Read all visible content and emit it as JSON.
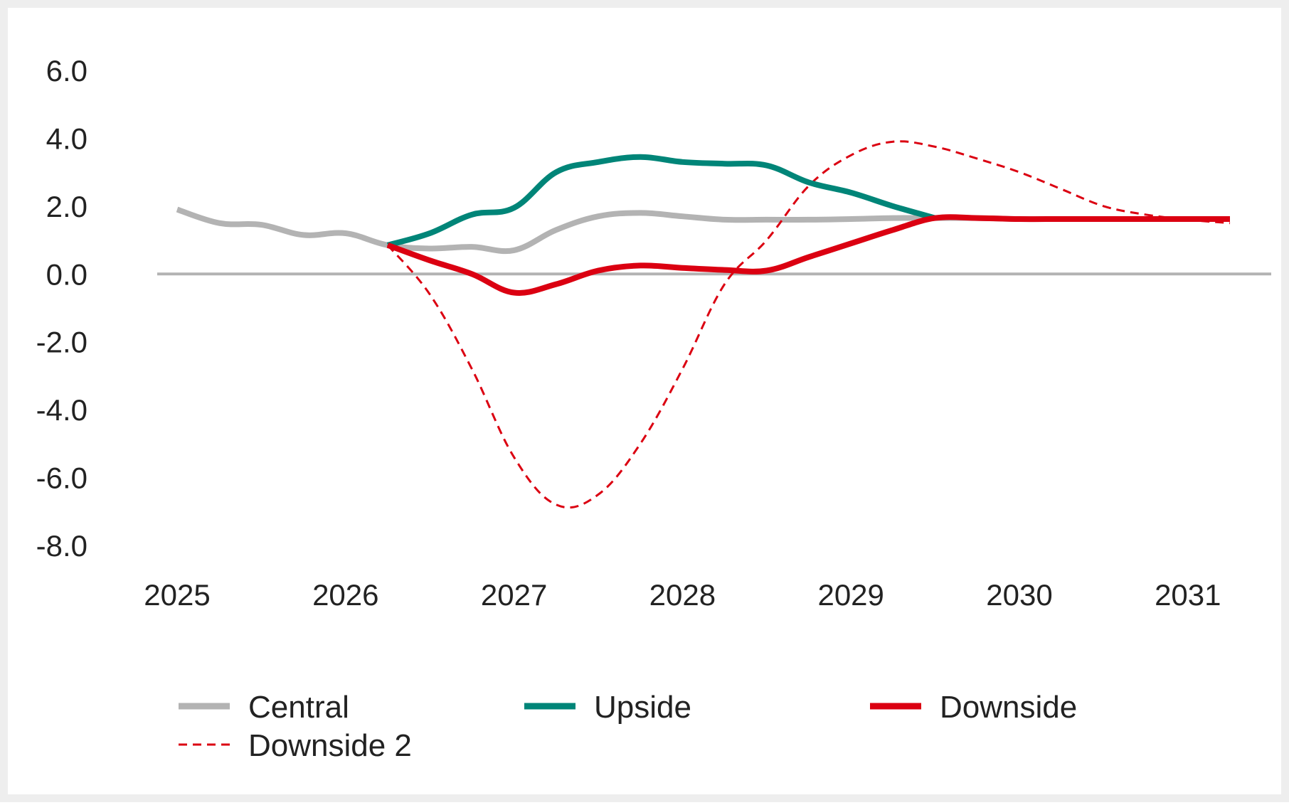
{
  "chart_data": {
    "type": "line",
    "title": "",
    "xlabel": "",
    "ylabel": "",
    "ylim": [
      -8.0,
      6.0
    ],
    "xlim": [
      2025,
      2031.25
    ],
    "y_ticks": [
      "6.0",
      "4.0",
      "2.0",
      "0.0",
      "-2.0",
      "-4.0",
      "-6.0",
      "-8.0"
    ],
    "y_tick_values": [
      6,
      4,
      2,
      0,
      -2,
      -4,
      -6,
      -8
    ],
    "x_ticks": [
      "2025",
      "2026",
      "2027",
      "2028",
      "2029",
      "2030",
      "2031"
    ],
    "x_tick_values": [
      2025,
      2026,
      2027,
      2028,
      2029,
      2030,
      2031
    ],
    "grid": false,
    "zero_line": true,
    "legend_position": "bottom",
    "series": [
      {
        "name": "Central",
        "color": "#b3b3b3",
        "style": "solid",
        "x": [
          2025.0,
          2025.25,
          2025.5,
          2025.75,
          2026.0,
          2026.25,
          2026.5,
          2026.75,
          2027.0,
          2027.25,
          2027.5,
          2027.75,
          2028.0,
          2028.25,
          2028.5,
          2028.75,
          2029.0,
          2029.25,
          2029.5,
          2029.75,
          2030.0,
          2030.25,
          2030.5,
          2030.75,
          2031.0,
          2031.25
        ],
        "values": [
          1.9,
          1.5,
          1.45,
          1.15,
          1.2,
          0.85,
          0.75,
          0.8,
          0.7,
          1.3,
          1.7,
          1.8,
          1.7,
          1.6,
          1.6,
          1.6,
          1.62,
          1.65,
          1.65,
          1.65,
          1.62,
          1.62,
          1.62,
          1.62,
          1.62,
          1.62
        ]
      },
      {
        "name": "Upside",
        "color": "#008578",
        "style": "solid",
        "x": [
          2026.25,
          2026.5,
          2026.75,
          2027.0,
          2027.25,
          2027.5,
          2027.75,
          2028.0,
          2028.25,
          2028.5,
          2028.75,
          2029.0,
          2029.25,
          2029.5
        ],
        "values": [
          0.85,
          1.2,
          1.75,
          1.95,
          3.0,
          3.3,
          3.45,
          3.3,
          3.25,
          3.2,
          2.7,
          2.4,
          2.0,
          1.65
        ]
      },
      {
        "name": "Downside",
        "color": "#db0011",
        "style": "solid",
        "x": [
          2026.25,
          2026.5,
          2026.75,
          2027.0,
          2027.25,
          2027.5,
          2027.75,
          2028.0,
          2028.25,
          2028.5,
          2028.75,
          2029.0,
          2029.25,
          2029.5,
          2029.75,
          2030.0,
          2030.25,
          2030.5,
          2030.75,
          2031.0,
          2031.25
        ],
        "values": [
          0.85,
          0.4,
          0.0,
          -0.55,
          -0.3,
          0.1,
          0.25,
          0.18,
          0.12,
          0.1,
          0.5,
          0.9,
          1.3,
          1.65,
          1.65,
          1.62,
          1.62,
          1.62,
          1.62,
          1.62,
          1.62
        ]
      },
      {
        "name": "Downside 2",
        "color": "#db0011",
        "style": "dashed",
        "x": [
          2026.25,
          2026.5,
          2026.75,
          2027.0,
          2027.25,
          2027.5,
          2027.75,
          2028.0,
          2028.25,
          2028.5,
          2028.75,
          2029.0,
          2029.25,
          2029.5,
          2029.75,
          2030.0,
          2030.25,
          2030.5,
          2030.75,
          2031.0,
          2031.25
        ],
        "values": [
          0.85,
          -0.6,
          -2.8,
          -5.4,
          -6.8,
          -6.5,
          -5.0,
          -2.8,
          -0.3,
          1.0,
          2.6,
          3.5,
          3.9,
          3.75,
          3.4,
          3.0,
          2.5,
          2.0,
          1.75,
          1.6,
          1.5
        ]
      }
    ]
  }
}
